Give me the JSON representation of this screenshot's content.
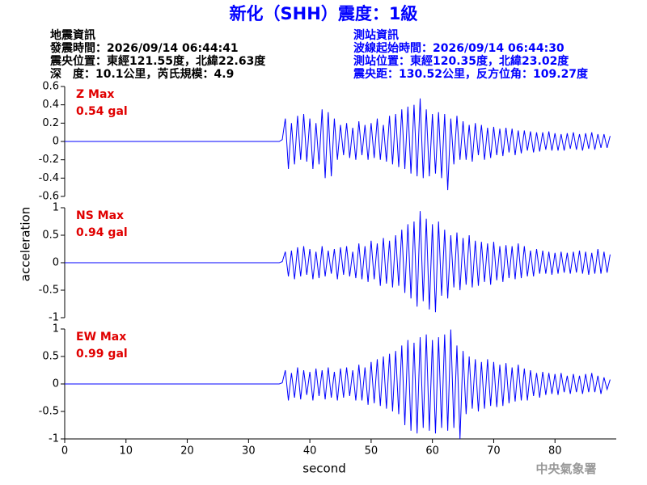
{
  "title": "新化（SHH）震度：1級",
  "event_info": [
    "地震資訊",
    "發震時間：2026/09/14 06:44:41",
    "震央位置：東經121.55度，北緯22.63度",
    "深　度：10.1公里，芮氏規模：4.9"
  ],
  "station_info": [
    "測站資訊",
    "波線起始時間：2026/09/14 06:44:30",
    "測站位置：東經120.35度，北緯23.02度",
    "震央距：130.52公里，反方位角：109.27度"
  ],
  "y_label": "acceleration",
  "footer": "中央氣象署",
  "chart_data": [
    {
      "type": "line",
      "label": "Z Max",
      "max_label": "0.54 gal",
      "xlim": [
        0,
        90
      ],
      "ylim": [
        -0.6,
        0.6
      ],
      "yticks": [
        0.6,
        0.4,
        0.2,
        0,
        -0.2,
        -0.4,
        -0.6
      ],
      "x": [
        0,
        35,
        35.5,
        36,
        36.5,
        37,
        37.5,
        38,
        38.5,
        39,
        39.5,
        40,
        40.5,
        41,
        41.5,
        42,
        42.5,
        43,
        43.5,
        44,
        44.5,
        45,
        45.5,
        46,
        46.5,
        47,
        47.5,
        48,
        48.5,
        49,
        49.5,
        50,
        50.5,
        51,
        51.5,
        52,
        52.5,
        53,
        53.5,
        54,
        54.5,
        55,
        55.5,
        56,
        56.5,
        57,
        57.5,
        58,
        58.5,
        59,
        59.5,
        60,
        60.5,
        61,
        61.5,
        62,
        62.5,
        63,
        63.5,
        64,
        64.5,
        65,
        65.5,
        66,
        66.5,
        67,
        67.5,
        68,
        68.5,
        69,
        69.5,
        70,
        70.5,
        71,
        71.5,
        72,
        72.5,
        73,
        73.5,
        74,
        74.5,
        75,
        75.5,
        76,
        76.5,
        77,
        77.5,
        78,
        78.5,
        79,
        79.5,
        80,
        80.5,
        81,
        81.5,
        82,
        82.5,
        83,
        83.5,
        84,
        84.5,
        85,
        85.5,
        86,
        86.5,
        87,
        87.5,
        88,
        88.5,
        89
      ],
      "series": [
        {
          "color": "#0000ff",
          "values": [
            0,
            0,
            0.02,
            0.25,
            -0.3,
            0.2,
            -0.25,
            0.28,
            -0.2,
            0.3,
            -0.22,
            0.25,
            -0.3,
            0.2,
            -0.25,
            0.35,
            -0.4,
            0.32,
            -0.38,
            0.25,
            -0.2,
            0.18,
            -0.15,
            0.2,
            -0.18,
            0.15,
            -0.2,
            0.22,
            -0.15,
            0.18,
            -0.2,
            0.2,
            -0.18,
            0.25,
            -0.2,
            0.18,
            -0.22,
            0.28,
            -0.25,
            0.3,
            -0.28,
            0.35,
            -0.3,
            0.38,
            -0.35,
            0.4,
            -0.38,
            0.47,
            -0.4,
            0.35,
            -0.38,
            0.3,
            -0.35,
            0.32,
            -0.4,
            0.3,
            -0.53,
            0.25,
            -0.25,
            0.28,
            -0.2,
            0.22,
            -0.2,
            0.18,
            -0.22,
            0.2,
            -0.15,
            0.18,
            -0.2,
            0.15,
            -0.18,
            0.16,
            -0.15,
            0.14,
            -0.16,
            0.15,
            -0.12,
            0.14,
            -0.15,
            0.12,
            -0.13,
            0.12,
            -0.1,
            0.11,
            -0.12,
            0.1,
            -0.11,
            0.1,
            -0.09,
            0.11,
            -0.1,
            0.09,
            -0.1,
            0.08,
            -0.1,
            0.09,
            -0.08,
            0.1,
            -0.09,
            0.08,
            -0.1,
            0.09,
            -0.08,
            0.1,
            -0.09,
            0.08,
            -0.07,
            0.08,
            -0.07,
            0.06
          ]
        }
      ]
    },
    {
      "type": "line",
      "label": "NS Max",
      "max_label": "0.94 gal",
      "xlim": [
        0,
        90
      ],
      "ylim": [
        -1,
        1
      ],
      "yticks": [
        1,
        0.5,
        0,
        -0.5,
        -1
      ],
      "x": [
        0,
        35,
        35.5,
        36,
        36.5,
        37,
        37.5,
        38,
        38.5,
        39,
        39.5,
        40,
        40.5,
        41,
        41.5,
        42,
        42.5,
        43,
        43.5,
        44,
        44.5,
        45,
        45.5,
        46,
        46.5,
        47,
        47.5,
        48,
        48.5,
        49,
        49.5,
        50,
        50.5,
        51,
        51.5,
        52,
        52.5,
        53,
        53.5,
        54,
        54.5,
        55,
        55.5,
        56,
        56.5,
        57,
        57.5,
        58,
        58.5,
        59,
        59.5,
        60,
        60.5,
        61,
        61.5,
        62,
        62.5,
        63,
        63.5,
        64,
        64.5,
        65,
        65.5,
        66,
        66.5,
        67,
        67.5,
        68,
        68.5,
        69,
        69.5,
        70,
        70.5,
        71,
        71.5,
        72,
        72.5,
        73,
        73.5,
        74,
        74.5,
        75,
        75.5,
        76,
        76.5,
        77,
        77.5,
        78,
        78.5,
        79,
        79.5,
        80,
        80.5,
        81,
        81.5,
        82,
        82.5,
        83,
        83.5,
        84,
        84.5,
        85,
        85.5,
        86,
        86.5,
        87,
        87.5,
        88,
        88.5,
        89
      ],
      "series": [
        {
          "color": "#0000ff",
          "values": [
            0,
            0,
            0.02,
            0.2,
            -0.25,
            0.22,
            -0.3,
            0.28,
            -0.25,
            0.3,
            -0.22,
            0.25,
            -0.3,
            0.2,
            -0.28,
            0.3,
            -0.25,
            0.22,
            -0.2,
            0.25,
            -0.3,
            0.28,
            -0.22,
            0.3,
            -0.25,
            0.2,
            -0.28,
            0.35,
            -0.3,
            0.3,
            -0.35,
            0.4,
            -0.3,
            0.35,
            -0.42,
            0.45,
            -0.38,
            0.4,
            -0.45,
            0.5,
            -0.42,
            0.6,
            -0.55,
            0.7,
            -0.65,
            0.75,
            -0.8,
            0.94,
            -0.7,
            0.8,
            -0.85,
            0.7,
            -0.9,
            0.75,
            -0.6,
            0.6,
            -0.65,
            0.5,
            -0.45,
            0.55,
            -0.5,
            0.45,
            -0.4,
            0.5,
            -0.45,
            0.4,
            -0.42,
            0.38,
            -0.35,
            0.35,
            -0.4,
            0.38,
            -0.32,
            0.3,
            -0.35,
            0.32,
            -0.28,
            0.3,
            -0.3,
            0.35,
            -0.28,
            0.3,
            -0.25,
            0.22,
            -0.25,
            0.25,
            -0.2,
            0.22,
            -0.2,
            0.2,
            -0.22,
            0.18,
            -0.2,
            0.2,
            -0.18,
            0.18,
            -0.2,
            0.2,
            -0.18,
            0.22,
            -0.2,
            0.2,
            -0.22,
            0.18,
            -0.2,
            0.25,
            -0.2,
            0.2,
            -0.18,
            0.15
          ]
        }
      ]
    },
    {
      "type": "line",
      "label": "EW Max",
      "max_label": "0.99 gal",
      "xlim": [
        0,
        90
      ],
      "ylim": [
        -1,
        1
      ],
      "yticks": [
        1,
        0.5,
        0,
        -0.5,
        -1
      ],
      "xticks": [
        0,
        10,
        20,
        30,
        40,
        50,
        60,
        70,
        80
      ],
      "x_label": "second",
      "x": [
        0,
        35,
        35.5,
        36,
        36.5,
        37,
        37.5,
        38,
        38.5,
        39,
        39.5,
        40,
        40.5,
        41,
        41.5,
        42,
        42.5,
        43,
        43.5,
        44,
        44.5,
        45,
        45.5,
        46,
        46.5,
        47,
        47.5,
        48,
        48.5,
        49,
        49.5,
        50,
        50.5,
        51,
        51.5,
        52,
        52.5,
        53,
        53.5,
        54,
        54.5,
        55,
        55.5,
        56,
        56.5,
        57,
        57.5,
        58,
        58.5,
        59,
        59.5,
        60,
        60.5,
        61,
        61.5,
        62,
        62.5,
        63,
        63.5,
        64,
        64.5,
        65,
        65.5,
        66,
        66.5,
        67,
        67.5,
        68,
        68.5,
        69,
        69.5,
        70,
        70.5,
        71,
        71.5,
        72,
        72.5,
        73,
        73.5,
        74,
        74.5,
        75,
        75.5,
        76,
        76.5,
        77,
        77.5,
        78,
        78.5,
        79,
        79.5,
        80,
        80.5,
        81,
        81.5,
        82,
        82.5,
        83,
        83.5,
        84,
        84.5,
        85,
        85.5,
        86,
        86.5,
        87,
        87.5,
        88,
        88.5,
        89
      ],
      "series": [
        {
          "color": "#0000ff",
          "values": [
            0,
            0,
            0.02,
            0.25,
            -0.3,
            0.2,
            -0.25,
            0.3,
            -0.28,
            0.25,
            -0.2,
            0.22,
            -0.3,
            0.28,
            -0.22,
            0.25,
            -0.28,
            0.3,
            -0.25,
            0.22,
            -0.3,
            0.28,
            -0.25,
            0.3,
            -0.22,
            0.25,
            -0.3,
            0.35,
            -0.3,
            0.3,
            -0.38,
            0.4,
            -0.35,
            0.45,
            -0.4,
            0.5,
            -0.45,
            0.55,
            -0.5,
            0.6,
            -0.55,
            0.7,
            -0.75,
            0.8,
            -0.85,
            0.75,
            -0.9,
            0.85,
            -0.8,
            0.9,
            -0.85,
            0.8,
            -0.9,
            0.85,
            -0.8,
            0.9,
            -0.85,
            0.99,
            -0.8,
            0.7,
            -1,
            0.6,
            -0.55,
            0.5,
            -0.45,
            0.45,
            -0.5,
            0.4,
            -0.45,
            0.45,
            -0.4,
            0.4,
            -0.42,
            0.35,
            -0.4,
            0.38,
            -0.35,
            0.3,
            -0.32,
            0.35,
            -0.3,
            0.28,
            -0.3,
            0.25,
            -0.22,
            0.2,
            -0.25,
            0.22,
            -0.2,
            0.2,
            -0.18,
            0.18,
            -0.2,
            0.2,
            -0.15,
            0.15,
            -0.18,
            0.18,
            -0.15,
            0.15,
            -0.18,
            0.18,
            -0.15,
            0.2,
            -0.15,
            0.15,
            -0.18,
            0.12,
            -0.1,
            0.08
          ]
        }
      ]
    }
  ]
}
